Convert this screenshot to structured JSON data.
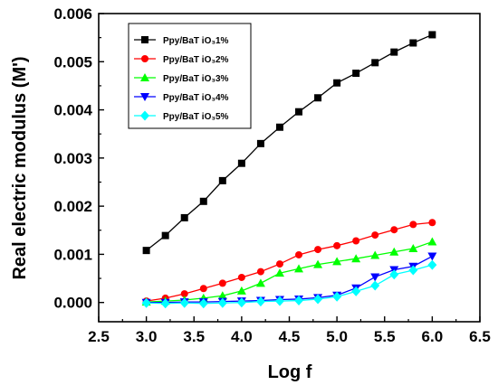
{
  "chart_data": {
    "type": "line",
    "xlabel": "Log f",
    "ylabel": "Real electric modulus (M')",
    "xlim": [
      2.5,
      6.5
    ],
    "ylim": [
      -0.0004,
      0.006
    ],
    "x_ticks": [
      "2.5",
      "3.0",
      "3.5",
      "4.0",
      "4.5",
      "5.0",
      "5.5",
      "6.0",
      "6.5"
    ],
    "y_ticks": [
      "0.000",
      "0.001",
      "0.002",
      "0.003",
      "0.004",
      "0.005",
      "0.006"
    ],
    "grid": false,
    "legend_position": "top-left",
    "x": [
      3.0,
      3.2,
      3.4,
      3.6,
      3.8,
      4.0,
      4.2,
      4.4,
      4.6,
      4.8,
      5.0,
      5.2,
      5.4,
      5.6,
      5.8,
      6.0
    ],
    "series": [
      {
        "name": "Ppy/BaT iO₃1%",
        "color": "#000000",
        "marker": "square",
        "values": [
          0.00108,
          0.00139,
          0.00176,
          0.0021,
          0.00253,
          0.00289,
          0.0033,
          0.00364,
          0.00396,
          0.00425,
          0.00456,
          0.00476,
          0.00498,
          0.0052,
          0.00539,
          0.00556
        ]
      },
      {
        "name": "Ppy/BaT iO₃2%",
        "color": "#ff0000",
        "marker": "circle",
        "values": [
          3e-05,
          9e-05,
          0.00018,
          0.00029,
          0.0004,
          0.00052,
          0.00064,
          0.0008,
          0.00099,
          0.0011,
          0.00118,
          0.00128,
          0.0014,
          0.00151,
          0.00162,
          0.00166
        ]
      },
      {
        "name": "Ppy/BaT iO₃3%",
        "color": "#00ff00",
        "marker": "triangle-up",
        "values": [
          1e-05,
          3e-05,
          5e-05,
          9e-05,
          0.00014,
          0.00024,
          0.0004,
          0.00061,
          0.0007,
          0.00079,
          0.00085,
          0.00091,
          0.00098,
          0.00105,
          0.00112,
          0.00126
        ]
      },
      {
        "name": "Ppy/BaT iO₃4%",
        "color": "#0000ff",
        "marker": "triangle-down",
        "values": [
          0.0,
          0.0,
          1e-05,
          1e-05,
          2e-05,
          3e-05,
          4e-05,
          6e-05,
          7e-05,
          0.0001,
          0.00015,
          0.0003,
          0.00053,
          0.00068,
          0.00075,
          0.00096
        ]
      },
      {
        "name": "Ppy/BaT iO₃5%",
        "color": "#00ffff",
        "marker": "diamond",
        "values": [
          -1e-05,
          -2e-05,
          -1e-05,
          -2e-05,
          -1e-05,
          0.0,
          2e-05,
          3e-05,
          4e-05,
          7e-05,
          0.00012,
          0.00023,
          0.00035,
          0.00058,
          0.00067,
          0.00078
        ]
      }
    ]
  }
}
